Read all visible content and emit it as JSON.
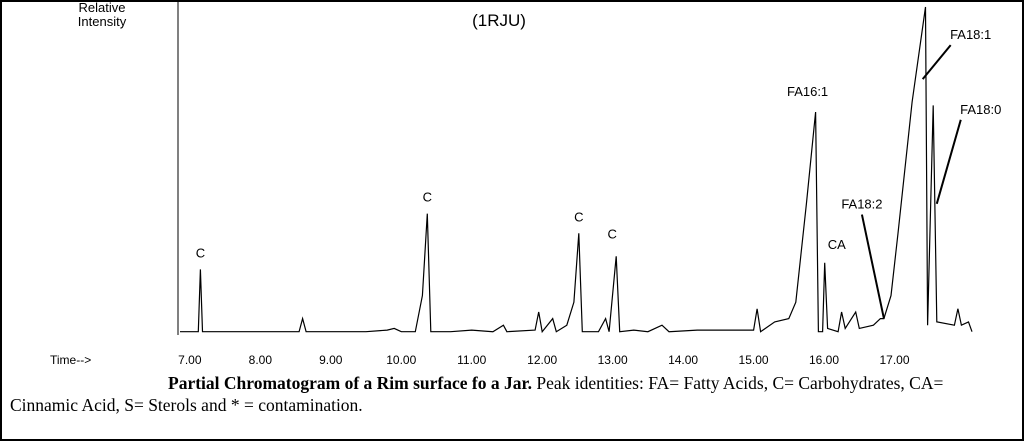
{
  "chart_data": {
    "type": "line",
    "title": "(1RJU)",
    "ylabel": "Relative Intensity",
    "xlabel": "Time-->",
    "color": "#000000",
    "xlim": [
      6.86,
      18.1
    ],
    "ylim": [
      0,
      100
    ],
    "xticks": [
      {
        "value": 7,
        "label": "7.00"
      },
      {
        "value": 8,
        "label": "8.00"
      },
      {
        "value": 9,
        "label": "9.00"
      },
      {
        "value": 10,
        "label": "10.00"
      },
      {
        "value": 11,
        "label": "11.00"
      },
      {
        "value": 12,
        "label": "12.00"
      },
      {
        "value": 13,
        "label": "13.00"
      },
      {
        "value": 14,
        "label": "14.00"
      },
      {
        "value": 15,
        "label": "15.00"
      },
      {
        "value": 16,
        "label": "16.00"
      },
      {
        "value": 17,
        "label": "17.00"
      }
    ],
    "x": [
      6.86,
      7.0,
      7.12,
      7.15,
      7.18,
      7.5,
      8.0,
      8.55,
      8.6,
      8.65,
      9.0,
      9.5,
      9.8,
      9.9,
      10.0,
      10.2,
      10.3,
      10.37,
      10.42,
      10.7,
      11.0,
      11.3,
      11.45,
      11.5,
      11.9,
      11.95,
      12.0,
      12.15,
      12.2,
      12.35,
      12.45,
      12.52,
      12.57,
      12.8,
      12.9,
      12.95,
      13.05,
      13.1,
      13.3,
      13.5,
      13.7,
      13.8,
      14.2,
      14.6,
      14.9,
      15.0,
      15.05,
      15.1,
      15.3,
      15.5,
      15.6,
      15.75,
      15.88,
      15.92,
      15.98,
      16.01,
      16.05,
      16.2,
      16.25,
      16.3,
      16.45,
      16.5,
      16.7,
      16.8,
      16.85,
      16.95,
      17.05,
      17.25,
      17.44,
      17.47,
      17.55,
      17.6,
      17.85,
      17.9,
      17.95,
      18.05,
      18.1
    ],
    "values": [
      1,
      1,
      1,
      20,
      1,
      1,
      1,
      1,
      5,
      1,
      1,
      1,
      1.5,
      2,
      1,
      1,
      12,
      37,
      1,
      1,
      1.5,
      1,
      3,
      1,
      1.5,
      7,
      1,
      5,
      1,
      3,
      10,
      31,
      1,
      1,
      5,
      1,
      24,
      1,
      1.5,
      1,
      3,
      1,
      1.5,
      1.5,
      1.5,
      1.5,
      8,
      1,
      4,
      5,
      10,
      40,
      68,
      1,
      1,
      22,
      2,
      1,
      7,
      2,
      7,
      2,
      3,
      5,
      5,
      12,
      31,
      71,
      100,
      3,
      70,
      4,
      3,
      8,
      3,
      4,
      1
    ],
    "annotations": [
      {
        "text": "C",
        "x": 7.15,
        "y": 20
      },
      {
        "text": "C",
        "x": 10.37,
        "y": 37
      },
      {
        "text": "C",
        "x": 12.52,
        "y": 31
      },
      {
        "text": "C",
        "x": 13.05,
        "y": 24
      },
      {
        "text": "FA16:1",
        "x": 15.88,
        "y": 68
      },
      {
        "text": "CA",
        "x": 16.01,
        "y": 22
      },
      {
        "text": "FA18:2",
        "x": 16.85,
        "y": 5
      },
      {
        "text": "FA18:1",
        "x": 17.4,
        "y": 78
      },
      {
        "text": "FA18:0",
        "x": 17.6,
        "y": 40
      }
    ]
  },
  "caption": {
    "bold": "Partial Chromatogram of a Rim surface fo a Jar.",
    "text": " Peak identities: FA= Fatty Acids, C= Carbohydrates, CA= Cinnamic Acid, S= Sterols and * = contamination."
  }
}
